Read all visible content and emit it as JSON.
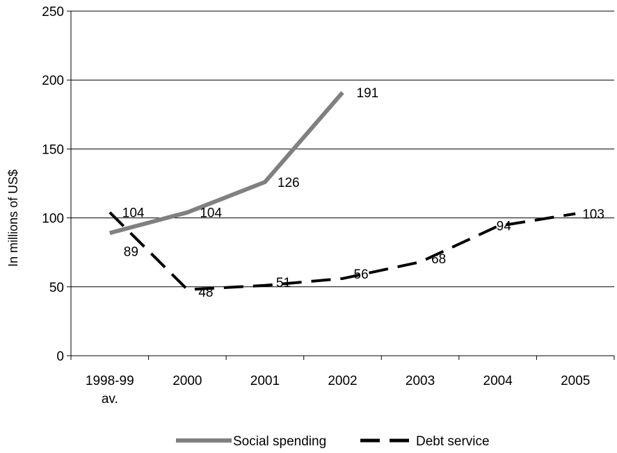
{
  "chart_data": {
    "type": "line",
    "title": "",
    "xlabel": "",
    "ylabel": "In millions of US$",
    "ylim": [
      0,
      250
    ],
    "yticks": [
      0,
      50,
      100,
      150,
      200,
      250
    ],
    "categories": [
      [
        "1998-99",
        "av."
      ],
      [
        "2000"
      ],
      [
        "2001"
      ],
      [
        "2002"
      ],
      [
        "2003"
      ],
      [
        "2004"
      ],
      [
        "2005"
      ]
    ],
    "grid": true,
    "legend_position": "bottom",
    "series": [
      {
        "name": "Social spending",
        "color": "#808080",
        "style": "solid",
        "values": [
          89,
          104,
          126,
          191,
          null,
          null,
          null
        ],
        "labels": [
          "89",
          "104",
          "126",
          "191",
          null,
          null,
          null
        ]
      },
      {
        "name": "Debt service",
        "color": "#000000",
        "style": "dashed",
        "values": [
          104,
          48,
          51,
          56,
          68,
          94,
          103
        ],
        "labels": [
          "104",
          "48",
          "51",
          "56",
          "68",
          "94",
          "103"
        ]
      }
    ]
  }
}
